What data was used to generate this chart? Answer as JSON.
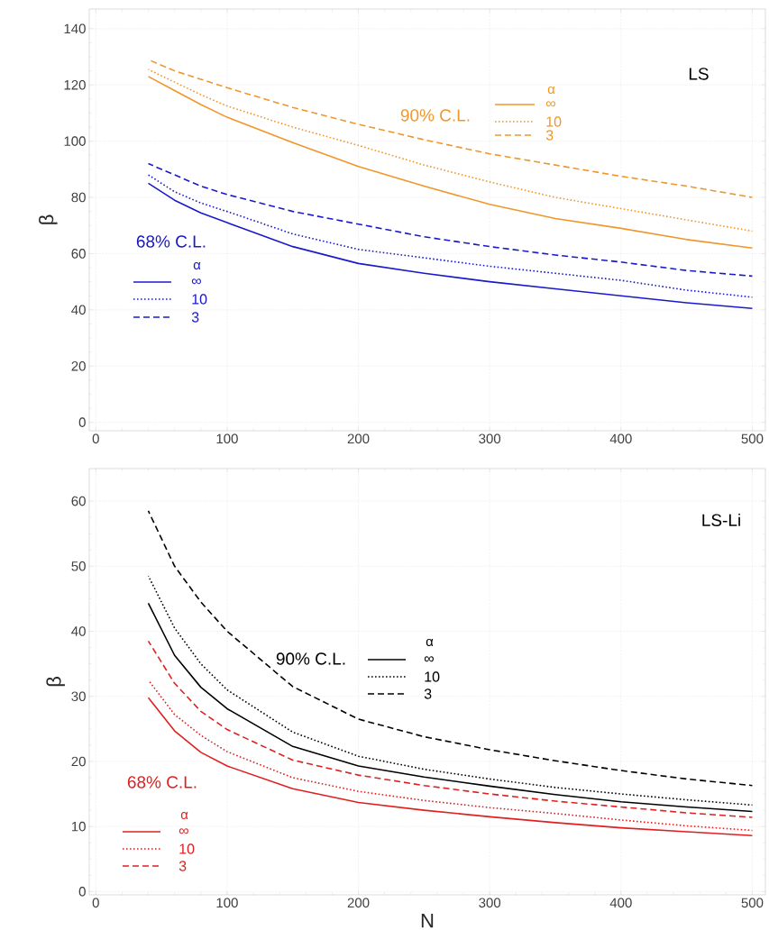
{
  "chart_data": [
    {
      "type": "line",
      "ylabel": "β",
      "legend_title": "α",
      "legend": "left",
      "grid": true,
      "annotations": [
        "LS",
        "90% C.L.",
        "68% C.L."
      ],
      "x": [
        40,
        60,
        80,
        100,
        150,
        200,
        250,
        300,
        350,
        400,
        450,
        500
      ],
      "xlim": [
        -5,
        510
      ],
      "xticks": [
        0,
        100,
        200,
        300,
        400,
        500
      ],
      "ylim": [
        -3,
        147
      ],
      "yticks": [
        0,
        20,
        40,
        60,
        80,
        100,
        120,
        140
      ],
      "series": [
        {
          "name": "∞",
          "color": "#1a1acc",
          "line_style": "solid",
          "values": [
            85,
            79,
            74.5,
            71,
            62.5,
            56.5,
            53,
            50,
            47.5,
            45,
            42.5,
            40.5
          ]
        },
        {
          "name": "10",
          "color": "#1a1acc",
          "line_style": "dotted",
          "values": [
            88,
            82,
            78,
            75,
            67,
            61.5,
            58.5,
            55.5,
            53,
            50.5,
            47,
            44.5
          ]
        },
        {
          "name": "3",
          "color": "#1a1acc",
          "line_style": "dashed",
          "values": [
            92,
            88,
            84,
            81,
            75,
            70.5,
            66,
            62.5,
            59.5,
            57,
            54,
            52
          ]
        },
        {
          "name": "∞",
          "color": "#f0962a",
          "line_style": "solid",
          "values": [
            123,
            118,
            113,
            108.5,
            99.5,
            91,
            84,
            77.5,
            72.5,
            69,
            65,
            62
          ]
        },
        {
          "name": "10",
          "color": "#f0962a",
          "line_style": "dotted",
          "values": [
            125.5,
            121,
            116.5,
            112.5,
            105,
            98.5,
            91.5,
            85.5,
            80,
            76,
            72,
            68
          ]
        },
        {
          "name": "3",
          "color": "#f0962a",
          "line_style": "dashed",
          "values": [
            129,
            125,
            122,
            119,
            112,
            106,
            100.5,
            95.5,
            91.5,
            87.5,
            84,
            80
          ]
        }
      ]
    },
    {
      "type": "line",
      "xlabel": "N",
      "ylabel": "β",
      "legend_title": "α",
      "legend": "left",
      "grid": true,
      "annotations": [
        "LS-Li",
        "90% C.L.",
        "68% C.L."
      ],
      "x": [
        40,
        60,
        80,
        100,
        150,
        200,
        250,
        300,
        350,
        400,
        450,
        500
      ],
      "xlim": [
        -5,
        510
      ],
      "xticks": [
        0,
        100,
        200,
        300,
        400,
        500
      ],
      "ylim": [
        -0.5,
        65
      ],
      "yticks": [
        0,
        10,
        20,
        30,
        40,
        50,
        60
      ],
      "series": [
        {
          "name": "∞",
          "color": "#e02020",
          "line_style": "solid",
          "values": [
            29.8,
            24.7,
            21.4,
            19.3,
            15.8,
            13.7,
            12.5,
            11.5,
            10.6,
            9.8,
            9.2,
            8.6
          ]
        },
        {
          "name": "10",
          "color": "#e02020",
          "line_style": "dotted",
          "values": [
            32.5,
            27.2,
            24,
            21.5,
            17.5,
            15.4,
            14,
            12.9,
            12,
            11,
            10.1,
            9.4
          ]
        },
        {
          "name": "3",
          "color": "#e02020",
          "line_style": "dashed",
          "values": [
            38.5,
            32,
            27.7,
            24.9,
            20.2,
            17.9,
            16.3,
            15,
            13.9,
            13,
            12.1,
            11.4
          ]
        },
        {
          "name": "∞",
          "color": "#000000",
          "line_style": "solid",
          "values": [
            44.3,
            36.3,
            31.4,
            28.1,
            22.3,
            19.3,
            17.6,
            16.2,
            14.9,
            13.8,
            13,
            12.3
          ]
        },
        {
          "name": "10",
          "color": "#000000",
          "line_style": "dotted",
          "values": [
            48.5,
            40.5,
            35,
            31,
            24.5,
            20.8,
            18.8,
            17.3,
            16,
            15,
            14.1,
            13.3
          ]
        },
        {
          "name": "3",
          "color": "#000000",
          "line_style": "dashed",
          "values": [
            58.5,
            50,
            44.5,
            40,
            31.5,
            26.5,
            23.8,
            21.8,
            20.1,
            18.6,
            17.3,
            16.3
          ]
        }
      ]
    }
  ]
}
